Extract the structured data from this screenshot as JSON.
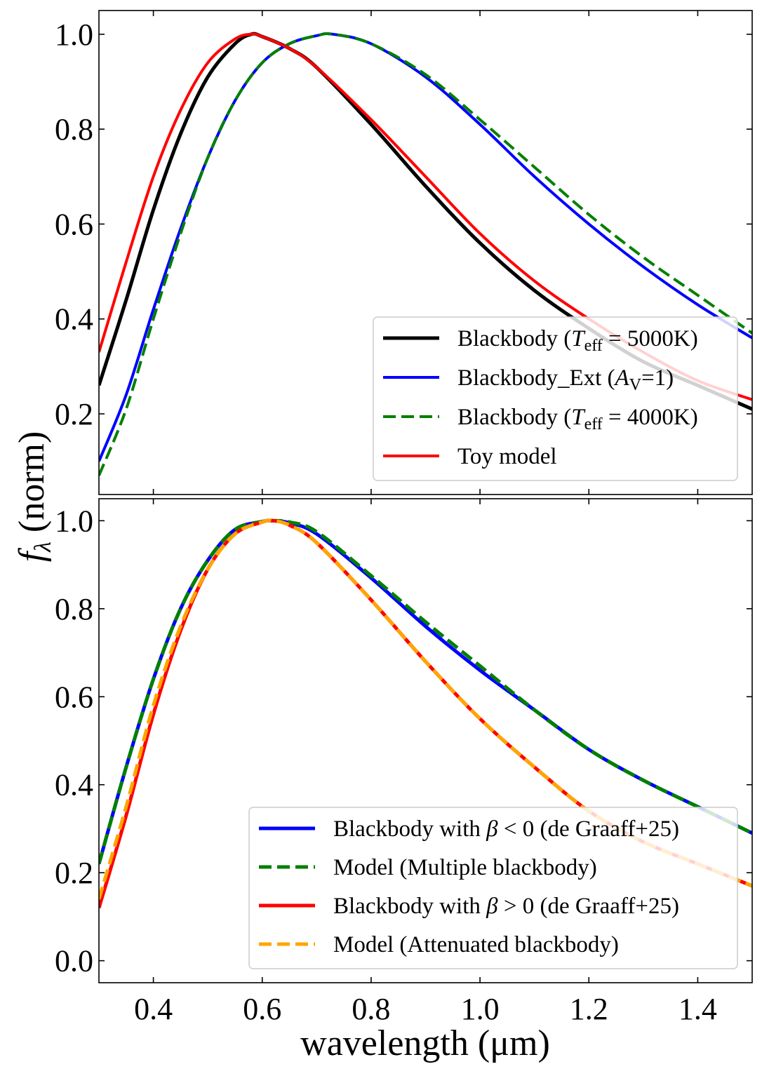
{
  "figure": {
    "ylabel_shared_math": "f",
    "ylabel_shared_sub": "λ",
    "ylabel_shared_text": " (norm)",
    "xlabel": "wavelength (μm)"
  },
  "chart_data": [
    {
      "type": "line",
      "xlim": [
        0.3,
        1.5
      ],
      "ylim": [
        0.03,
        1.05
      ],
      "yticks": [
        0.2,
        0.4,
        0.6,
        0.8,
        1.0
      ],
      "ytick_labels": [
        "0.2",
        "0.4",
        "0.6",
        "0.8",
        "1.0"
      ],
      "xticks": [
        0.4,
        0.6,
        0.8,
        1.0,
        1.2,
        1.4
      ],
      "grid": false,
      "legend_position": "lower-right",
      "series": [
        {
          "name": "Blackbody (T_eff = 5000K)",
          "color": "#000000",
          "style": "solid",
          "width": 5,
          "x": [
            0.3,
            0.35,
            0.4,
            0.45,
            0.5,
            0.55,
            0.58,
            0.6,
            0.65,
            0.7,
            0.8,
            0.9,
            1.0,
            1.1,
            1.2,
            1.3,
            1.4,
            1.5
          ],
          "y": [
            0.26,
            0.44,
            0.63,
            0.79,
            0.91,
            0.98,
            1.0,
            0.995,
            0.97,
            0.93,
            0.81,
            0.68,
            0.56,
            0.46,
            0.38,
            0.31,
            0.26,
            0.21
          ]
        },
        {
          "name": "Blackbody_Ext (A_V=1)",
          "color": "#0000ff",
          "style": "solid",
          "width": 4,
          "x": [
            0.3,
            0.35,
            0.4,
            0.45,
            0.5,
            0.55,
            0.6,
            0.65,
            0.7,
            0.73,
            0.8,
            0.9,
            1.0,
            1.1,
            1.2,
            1.3,
            1.4,
            1.5
          ],
          "y": [
            0.1,
            0.24,
            0.42,
            0.59,
            0.74,
            0.86,
            0.94,
            0.98,
            0.997,
            1.0,
            0.98,
            0.91,
            0.81,
            0.7,
            0.6,
            0.51,
            0.43,
            0.36
          ]
        },
        {
          "name": "Blackbody (T_eff = 4000K)",
          "color": "#008000",
          "style": "dashed",
          "width": 4,
          "x": [
            0.3,
            0.35,
            0.4,
            0.45,
            0.5,
            0.55,
            0.6,
            0.65,
            0.7,
            0.73,
            0.8,
            0.9,
            1.0,
            1.1,
            1.2,
            1.3,
            1.4,
            1.5
          ],
          "y": [
            0.07,
            0.21,
            0.4,
            0.58,
            0.74,
            0.86,
            0.94,
            0.98,
            0.997,
            1.0,
            0.98,
            0.915,
            0.82,
            0.72,
            0.62,
            0.53,
            0.45,
            0.37
          ]
        },
        {
          "name": "Toy model",
          "color": "#ff0000",
          "style": "solid",
          "width": 4,
          "x": [
            0.3,
            0.35,
            0.4,
            0.45,
            0.5,
            0.55,
            0.58,
            0.6,
            0.65,
            0.7,
            0.8,
            0.9,
            1.0,
            1.1,
            1.2,
            1.3,
            1.4,
            1.5
          ],
          "y": [
            0.33,
            0.52,
            0.7,
            0.84,
            0.94,
            0.99,
            1.0,
            0.995,
            0.97,
            0.93,
            0.82,
            0.7,
            0.58,
            0.48,
            0.4,
            0.33,
            0.27,
            0.23
          ]
        }
      ],
      "legend": [
        {
          "pre": "Blackbody (",
          "math": "T",
          "sub": "eff",
          "post": " = 5000K)"
        },
        {
          "pre": "Blackbody_Ext (",
          "math": "A",
          "sub": "V",
          "post": "=1)"
        },
        {
          "pre": "Blackbody (",
          "math": "T",
          "sub": "eff",
          "post": " = 4000K)"
        },
        {
          "pre": "Toy model",
          "math": "",
          "sub": "",
          "post": ""
        }
      ]
    },
    {
      "type": "line",
      "xlim": [
        0.3,
        1.5
      ],
      "ylim": [
        -0.05,
        1.05
      ],
      "yticks": [
        0.0,
        0.2,
        0.4,
        0.6,
        0.8,
        1.0
      ],
      "ytick_labels": [
        "0.0",
        "0.2",
        "0.4",
        "0.6",
        "0.8",
        "1.0"
      ],
      "xticks": [
        0.4,
        0.6,
        0.8,
        1.0,
        1.2,
        1.4
      ],
      "xtick_labels": [
        "0.4",
        "0.6",
        "0.8",
        "1.0",
        "1.2",
        "1.4"
      ],
      "grid": false,
      "legend_position": "lower-right",
      "series": [
        {
          "name": "Blackbody with β < 0 (de Graaff+25)",
          "color": "#0000ff",
          "style": "solid",
          "width": 5,
          "x": [
            0.3,
            0.35,
            0.4,
            0.45,
            0.5,
            0.55,
            0.6,
            0.62,
            0.65,
            0.7,
            0.8,
            0.9,
            1.0,
            1.1,
            1.2,
            1.3,
            1.4,
            1.5
          ],
          "y": [
            0.22,
            0.44,
            0.64,
            0.8,
            0.91,
            0.98,
            0.998,
            1.0,
            0.995,
            0.97,
            0.87,
            0.76,
            0.66,
            0.57,
            0.48,
            0.41,
            0.35,
            0.29
          ]
        },
        {
          "name": "Model (Multiple blackbody)",
          "color": "#008000",
          "style": "dashed",
          "width": 5,
          "x": [
            0.3,
            0.35,
            0.4,
            0.45,
            0.5,
            0.55,
            0.6,
            0.62,
            0.65,
            0.7,
            0.8,
            0.9,
            1.0,
            1.1,
            1.2,
            1.3,
            1.4,
            1.5
          ],
          "y": [
            0.22,
            0.44,
            0.64,
            0.8,
            0.91,
            0.98,
            0.998,
            1.0,
            0.997,
            0.975,
            0.875,
            0.77,
            0.67,
            0.57,
            0.48,
            0.41,
            0.35,
            0.29
          ]
        },
        {
          "name": "Blackbody with β > 0 (de Graaff+25)",
          "color": "#ff0000",
          "style": "solid",
          "width": 5,
          "x": [
            0.3,
            0.35,
            0.4,
            0.45,
            0.5,
            0.55,
            0.6,
            0.62,
            0.65,
            0.7,
            0.8,
            0.9,
            1.0,
            1.1,
            1.2,
            1.3,
            1.4,
            1.5
          ],
          "y": [
            0.12,
            0.33,
            0.56,
            0.75,
            0.89,
            0.97,
            0.997,
            1.0,
            0.99,
            0.95,
            0.82,
            0.68,
            0.55,
            0.44,
            0.34,
            0.27,
            0.22,
            0.17
          ]
        },
        {
          "name": "Model (Attenuated blackbody)",
          "color": "#ffa500",
          "style": "dashed",
          "width": 5,
          "x": [
            0.3,
            0.35,
            0.4,
            0.45,
            0.5,
            0.55,
            0.6,
            0.62,
            0.65,
            0.7,
            0.8,
            0.9,
            1.0,
            1.1,
            1.2,
            1.3,
            1.4,
            1.5
          ],
          "y": [
            0.14,
            0.35,
            0.58,
            0.76,
            0.89,
            0.97,
            0.997,
            1.0,
            0.99,
            0.95,
            0.82,
            0.68,
            0.55,
            0.44,
            0.34,
            0.27,
            0.22,
            0.17
          ]
        }
      ],
      "legend": [
        {
          "pre": "Blackbody with ",
          "math": "β",
          "sub": "",
          "post": " < 0 (de Graaff+25)"
        },
        {
          "pre": "Model (Multiple blackbody)",
          "math": "",
          "sub": "",
          "post": ""
        },
        {
          "pre": "Blackbody with ",
          "math": "β",
          "sub": "",
          "post": " > 0 (de Graaff+25)"
        },
        {
          "pre": "Model (Attenuated blackbody)",
          "math": "",
          "sub": "",
          "post": ""
        }
      ]
    }
  ]
}
